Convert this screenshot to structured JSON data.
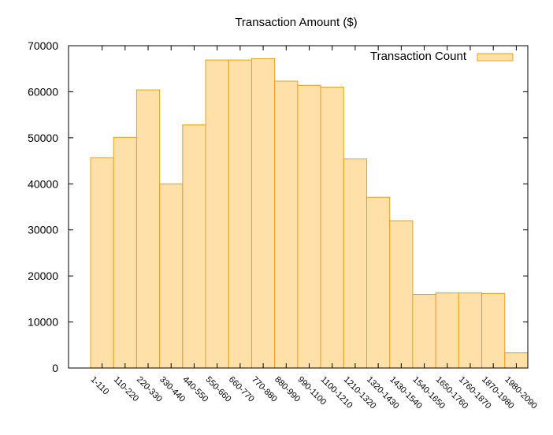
{
  "chart_data": {
    "type": "bar",
    "title": "Transaction Amount ($)",
    "xlabel": "",
    "ylabel": "",
    "ylim": [
      0,
      70000
    ],
    "yticks": [
      0,
      10000,
      20000,
      30000,
      40000,
      50000,
      60000,
      70000
    ],
    "categories": [
      "1-110",
      "110-220",
      "220-330",
      "330-440",
      "440-550",
      "550-660",
      "660-770",
      "770-880",
      "880-990",
      "990-1100",
      "1100-1210",
      "1210-1320",
      "1320-1430",
      "1430-1540",
      "1540-1650",
      "1650-1760",
      "1760-1870",
      "1870-1980",
      "1980-2090"
    ],
    "series": [
      {
        "name": "Transaction Count",
        "values": [
          45700,
          50100,
          60400,
          40000,
          52800,
          66900,
          66900,
          67200,
          62300,
          61400,
          61000,
          45400,
          37100,
          32000,
          16000,
          16300,
          16300,
          16200,
          3300
        ]
      }
    ],
    "grid": false,
    "legend_position": "top-right",
    "colors": {
      "bar_fill": "#ffe0a8",
      "bar_stroke": "#e6a01e",
      "frame": "#000000"
    }
  }
}
